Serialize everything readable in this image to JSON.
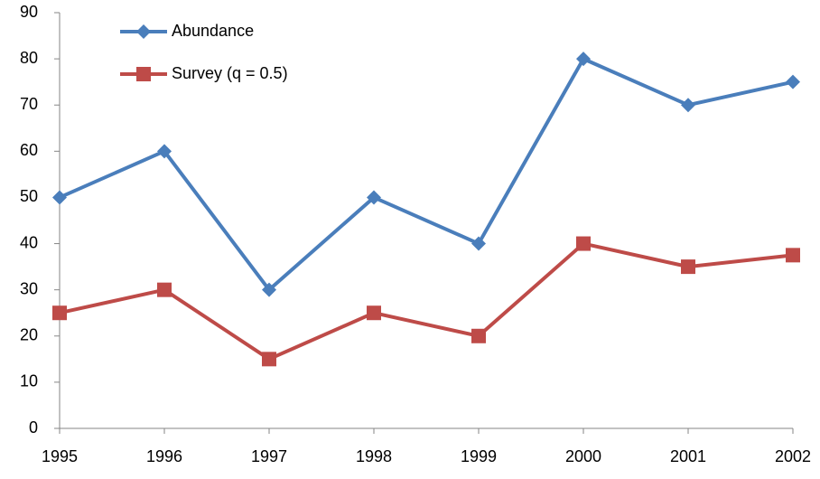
{
  "chart_data": {
    "type": "line",
    "x": [
      1995,
      1996,
      1997,
      1998,
      1999,
      2000,
      2001,
      2002
    ],
    "xlim": [
      1995,
      2002
    ],
    "xticks": [
      1995,
      1996,
      1997,
      1998,
      1999,
      2000,
      2001,
      2002
    ],
    "ylim": [
      0,
      90
    ],
    "yticks": [
      0,
      10,
      20,
      30,
      40,
      50,
      60,
      70,
      80,
      90
    ],
    "grid": false,
    "legend": "upper-left",
    "series": [
      {
        "name": "Abundance",
        "color": "#4a7ebb",
        "marker": "diamond",
        "values": [
          50,
          60,
          30,
          50,
          40,
          80,
          70,
          75
        ]
      },
      {
        "name": "Survey (q = 0.5)",
        "color": "#be4b48",
        "marker": "square",
        "values": [
          25,
          30,
          15,
          25,
          20,
          40,
          35,
          37.5
        ]
      }
    ]
  }
}
